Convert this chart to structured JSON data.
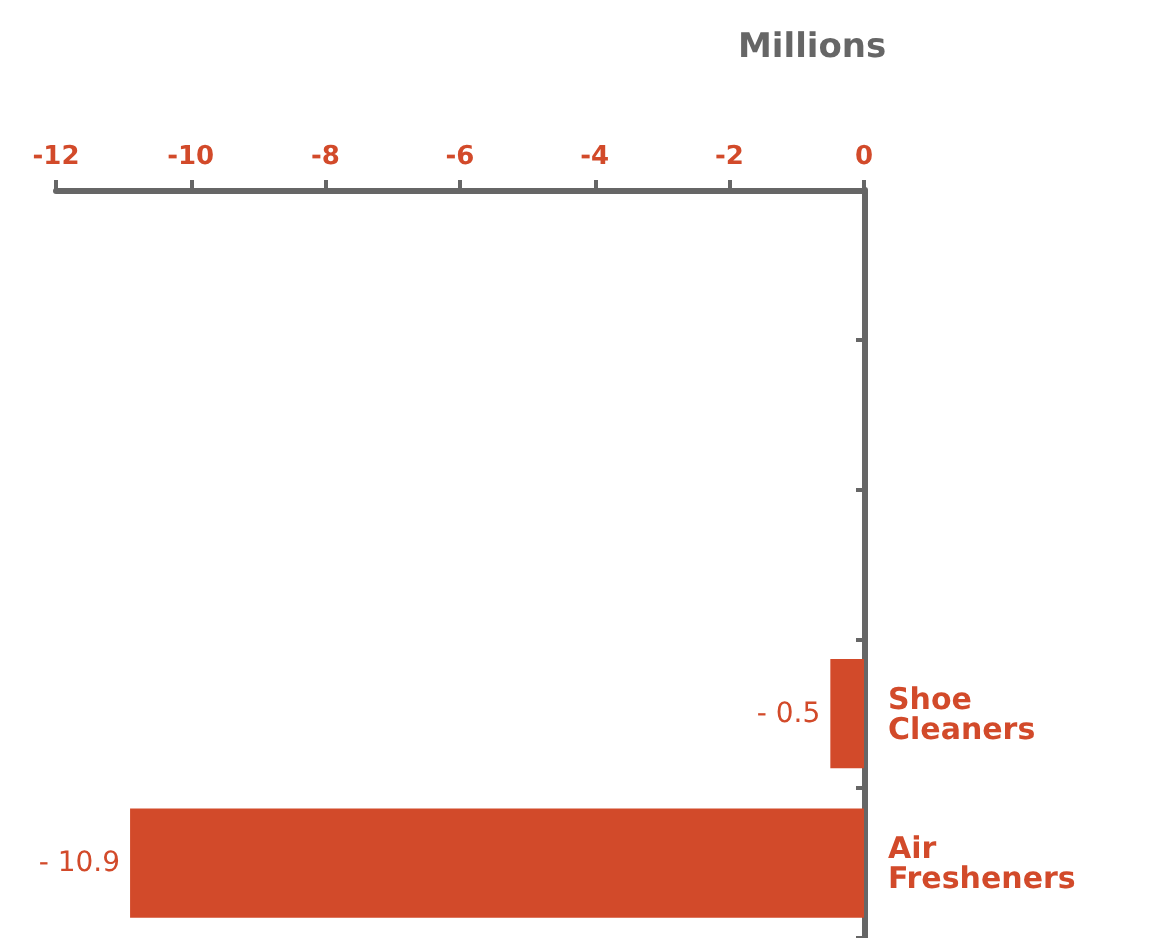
{
  "chart_data": {
    "type": "bar",
    "orientation": "horizontal",
    "xlabel": "Millions",
    "categories": [
      null,
      null,
      null,
      "Shoe Cleaners",
      "Air Fresheners"
    ],
    "values": [
      null,
      null,
      null,
      -0.5,
      -10.9
    ],
    "value_labels": [
      null,
      null,
      null,
      "- 0.5",
      "- 10.9"
    ],
    "color": "#d24a2a",
    "xlim": [
      -12,
      0
    ],
    "xticks": [
      -12,
      -10,
      -8,
      -6,
      -4,
      -2,
      0
    ],
    "grid": false
  }
}
